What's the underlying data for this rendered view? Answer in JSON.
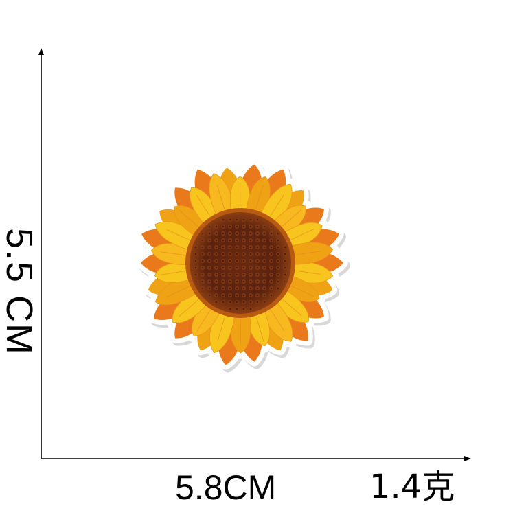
{
  "dimensions": {
    "height_label": "5.5 CM",
    "width_label": "5.8CM",
    "weight_label": "1.4克"
  },
  "product": {
    "subject": "sunflower-embroidered-patch",
    "colors": {
      "petal_light": "#f7c51e",
      "petal_mid": "#f0a215",
      "petal_dark": "#e9791a",
      "center_dark": "#5a220f",
      "center_mid": "#7e3914",
      "center_ring": "#b85a12",
      "border": "#ffffff"
    }
  },
  "axis": {
    "color": "#000000"
  }
}
